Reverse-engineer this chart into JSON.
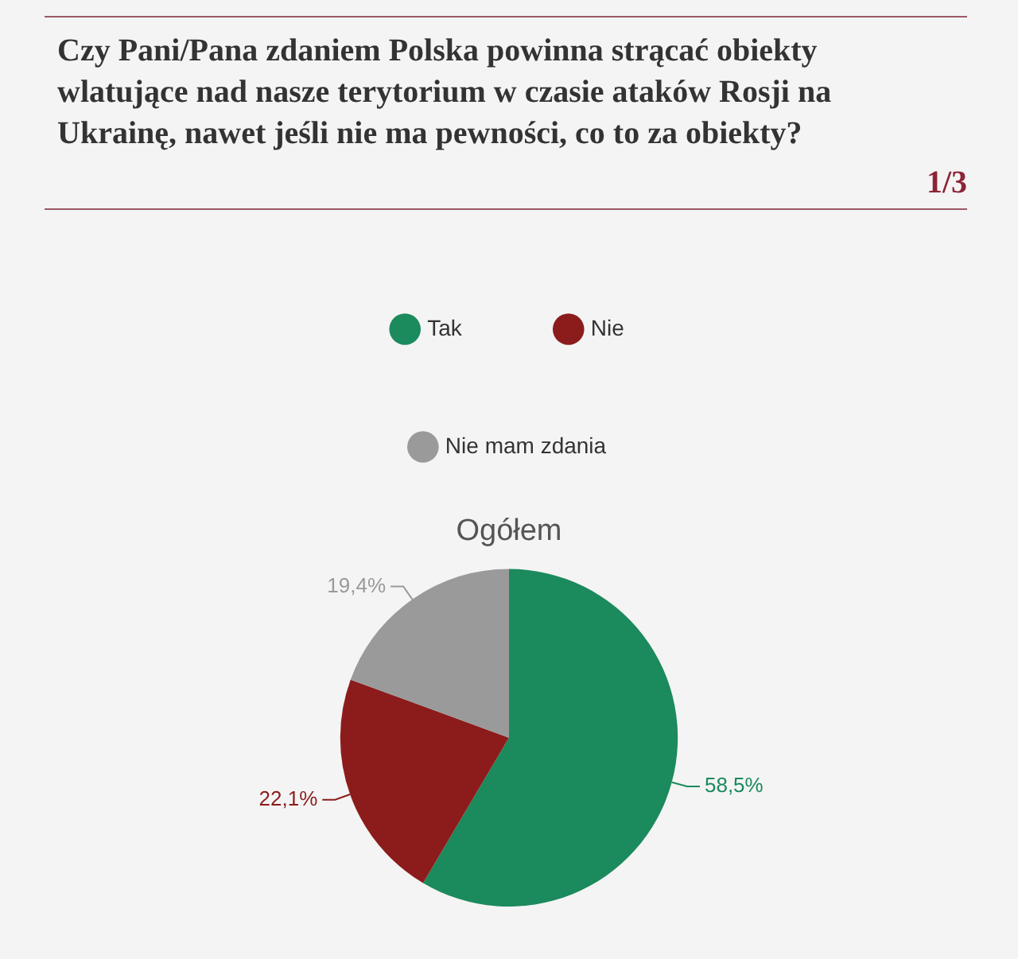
{
  "chart_data": {
    "type": "pie",
    "title": "Czy Pani/Pana zdaniem Polska powinna strącać obiekty wlatujące nad nasze terytorium w czasie ataków Rosji na Ukrainę, nawet jeśli nie ma pewności, co to za obiekty?",
    "subtitle": "Ogółem",
    "annotations": [
      "1/3"
    ],
    "categories": [
      "Tak",
      "Nie",
      "Nie mam zdania"
    ],
    "values": [
      58.5,
      22.1,
      19.4
    ],
    "colors": [
      "#1b8a5c",
      "#8c1c1c",
      "#9a9a9a"
    ],
    "value_labels": [
      "58,5%",
      "22,1%",
      "19,4%"
    ],
    "legend": "top"
  }
}
